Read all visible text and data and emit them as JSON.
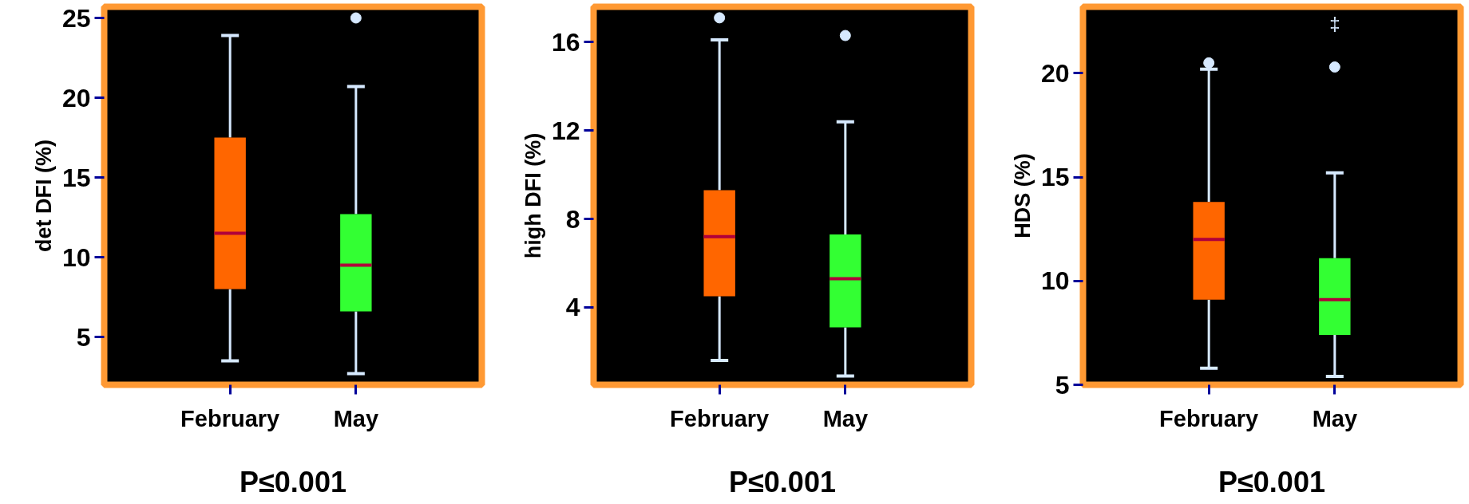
{
  "chart_data": [
    {
      "type": "box",
      "categories": [
        "February",
        "May"
      ],
      "colors": [
        "#ff6600",
        "#33ff33"
      ],
      "ylabel": "det DFI (%)",
      "xlabel": "P≤0.001",
      "ylim": [
        2,
        25.7
      ],
      "yticks": [
        5,
        10,
        15,
        20,
        25
      ],
      "grid": false,
      "boxes": [
        {
          "low": 3.5,
          "q1": 8.0,
          "median": 11.5,
          "q3": 17.5,
          "high": 23.9
        },
        {
          "low": 2.7,
          "q1": 6.6,
          "median": 9.5,
          "q3": 12.7,
          "high": 20.7,
          "outliers": [
            25
          ]
        }
      ]
    },
    {
      "type": "box",
      "categories": [
        "February",
        "May"
      ],
      "colors": [
        "#ff6600",
        "#33ff33"
      ],
      "ylabel": "high DFI (%)",
      "xlabel": "P≤0.001",
      "ylim": [
        0.5,
        17.6
      ],
      "yticks": [
        4,
        8,
        12,
        16
      ],
      "grid": false,
      "boxes": [
        {
          "low": 1.6,
          "q1": 4.5,
          "median": 7.2,
          "q3": 9.3,
          "high": 16.1,
          "outliers": [
            17.1
          ]
        },
        {
          "low": 0.9,
          "q1": 3.1,
          "median": 5.3,
          "q3": 7.3,
          "high": 12.4,
          "outliers": [
            16.3
          ]
        }
      ]
    },
    {
      "type": "box",
      "categories": [
        "February",
        "May"
      ],
      "colors": [
        "#ff6600",
        "#33ff33"
      ],
      "ylabel": "HDS (%)",
      "xlabel": "P≤0.001",
      "ylim": [
        5,
        23.2
      ],
      "yticks": [
        5,
        10,
        15,
        20
      ],
      "grid": false,
      "annotations": [
        "‡"
      ],
      "boxes": [
        {
          "low": 5.8,
          "q1": 9.1,
          "median": 12.0,
          "q3": 13.8,
          "high": 20.2,
          "outliers": [
            20.5
          ]
        },
        {
          "low": 5.4,
          "q1": 7.4,
          "median": 9.1,
          "q3": 11.1,
          "high": 15.2,
          "outliers": [
            20.3
          ]
        }
      ]
    }
  ]
}
